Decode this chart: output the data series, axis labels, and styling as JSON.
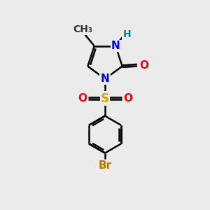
{
  "bg_color": "#ebebeb",
  "bond_color": "#000000",
  "bond_width": 1.8,
  "atom_colors": {
    "N": "#0000ff",
    "O": "#ff0000",
    "S": "#ccaa00",
    "Br": "#bb7700",
    "H": "#008888",
    "C": "#000000"
  },
  "font_size": 11,
  "fig_width": 3.0,
  "fig_height": 3.0,
  "dpi": 100
}
